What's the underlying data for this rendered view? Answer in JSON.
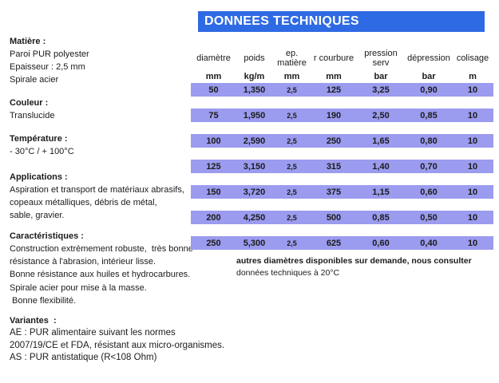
{
  "title": "DONNEES TECHNIQUES",
  "colors": {
    "title_bg": "#2e6ae3",
    "row_bg": "#9b9bef",
    "title_text": "#ffffff"
  },
  "left_panel": {
    "sections": [
      {
        "heading": "Matière :",
        "lines": [
          "Paroi PUR polyester",
          "Epaisseur : 2,5 mm",
          "Spirale acier"
        ]
      },
      {
        "heading": "Couleur :",
        "lines": [
          "Translucide"
        ]
      },
      {
        "heading": "Température :",
        "lines": [
          "- 30°C / + 100°C"
        ]
      },
      {
        "heading": "Applications :",
        "lines": [
          "Aspiration et transport de matériaux abrasifs,",
          "copeaux métalliques, débris de métal,",
          "sable, gravier."
        ]
      },
      {
        "heading": "Caractéristiques :",
        "lines": [
          "Construction extrèmement robuste,  très bonne",
          "résistance à l'abrasion, intérieur lisse.",
          "Bonne résistance aux huiles et hydrocarbures.",
          "Spirale acier pour mise à la masse.",
          " Bonne flexibilité."
        ]
      },
      {
        "heading": "Variantes  :",
        "lines": [
          "AE : PUR alimentaire suivant les normes",
          "2007/19/CE et FDA, résistant aux micro-organismes.",
          "AS : PUR antistatique (R<108 Ohm)"
        ]
      }
    ]
  },
  "table": {
    "columns": [
      {
        "label": "diamètre",
        "unit": "mm"
      },
      {
        "label": "poids",
        "unit": "kg/m"
      },
      {
        "label": "ep.\nmatière",
        "unit": "mm"
      },
      {
        "label": "r courbure",
        "unit": "mm"
      },
      {
        "label": "pression\nserv",
        "unit": "bar"
      },
      {
        "label": "dépression",
        "unit": "bar"
      },
      {
        "label": "colisage",
        "unit": "m"
      }
    ],
    "rows": [
      [
        "50",
        "1,350",
        "2,5",
        "125",
        "3,25",
        "0,90",
        "10"
      ],
      [
        "75",
        "1,950",
        "2,5",
        "190",
        "2,50",
        "0,85",
        "10"
      ],
      [
        "100",
        "2,590",
        "2,5",
        "250",
        "1,65",
        "0,80",
        "10"
      ],
      [
        "125",
        "3,150",
        "2,5",
        "315",
        "1,40",
        "0,70",
        "10"
      ],
      [
        "150",
        "3,720",
        "2,5",
        "375",
        "1,15",
        "0,60",
        "10"
      ],
      [
        "200",
        "4,250",
        "2,5",
        "500",
        "0,85",
        "0,50",
        "10"
      ],
      [
        "250",
        "5,300",
        "2,5",
        "625",
        "0,60",
        "0,40",
        "10"
      ]
    ],
    "notes": [
      "autres diamètres disponibles sur demande, nous consulter",
      "données techniques à 20°C"
    ]
  }
}
